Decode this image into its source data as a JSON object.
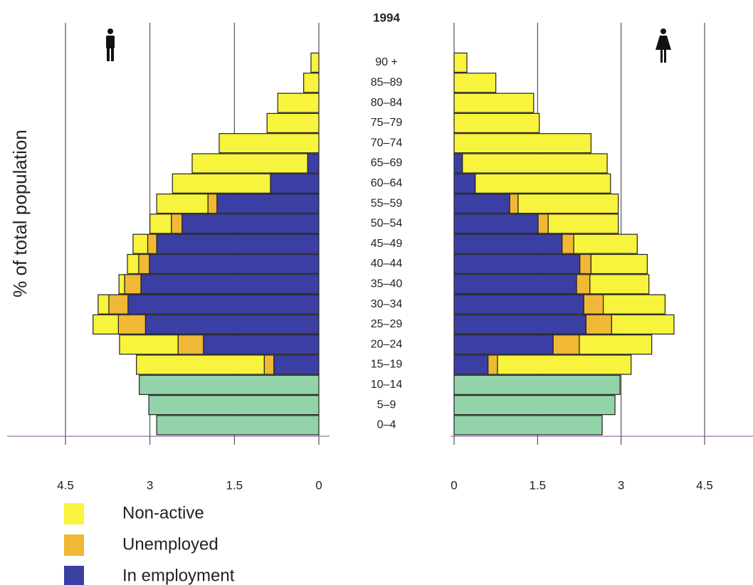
{
  "chart_data": {
    "type": "bar",
    "orientation": "horizontal",
    "title": "1994",
    "ylabel": "% of total population",
    "categories": [
      "90 +",
      "85–89",
      "80–84",
      "75–79",
      "70–74",
      "65–69",
      "60–64",
      "55–59",
      "50–54",
      "45–49",
      "40–44",
      "35–40",
      "30–34",
      "25–29",
      "20–24",
      "15–19",
      "10–14",
      "5–9",
      "0–4"
    ],
    "panels": [
      {
        "x_reversed": true,
        "xlim": [
          0,
          4.5
        ],
        "xticks": [
          4.5,
          3,
          1.5,
          0
        ],
        "series": [
          {
            "color": "#93d3a9",
            "values": [
              0,
              0,
              0,
              0,
              0,
              0,
              0,
              0,
              0,
              0,
              0,
              0,
              0,
              0,
              0,
              0,
              3.19,
              3.02,
              2.88
            ]
          },
          {
            "name": "In employment",
            "color": "#3b3fa3",
            "values": [
              0,
              0,
              0,
              0,
              0,
              0.2,
              0.86,
              1.81,
              2.43,
              2.88,
              3.01,
              3.16,
              3.39,
              3.08,
              2.05,
              0.8,
              0,
              0,
              0
            ]
          },
          {
            "name": "Unemployed",
            "color": "#f0b834",
            "values": [
              0,
              0,
              0,
              0,
              0,
              0,
              0,
              0.16,
              0.19,
              0.16,
              0.19,
              0.29,
              0.34,
              0.48,
              0.45,
              0.17,
              0,
              0,
              0
            ]
          },
          {
            "name": "Non-active",
            "color": "#f8f33c",
            "values": [
              0.14,
              0.27,
              0.73,
              0.92,
              1.77,
              2.05,
              1.74,
              0.91,
              0.38,
              0.26,
              0.2,
              0.1,
              0.19,
              0.45,
              1.04,
              2.27,
              0,
              0,
              0
            ]
          }
        ]
      },
      {
        "x_reversed": false,
        "xlim": [
          0,
          4.5
        ],
        "xticks": [
          0,
          1.5,
          3,
          4.5
        ],
        "series": [
          {
            "color": "#93d3a9",
            "values": [
              0,
              0,
              0,
              0,
              0,
              0,
              0,
              0,
              0,
              0,
              0,
              0,
              0,
              0,
              0,
              0,
              2.98,
              2.89,
              2.66
            ]
          },
          {
            "color": "#3b3fa3",
            "values": [
              0,
              0,
              0,
              0,
              0,
              0.15,
              0.38,
              1.0,
              1.51,
              1.94,
              2.26,
              2.2,
              2.33,
              2.37,
              1.78,
              0.61,
              0,
              0,
              0
            ]
          },
          {
            "color": "#f0b834",
            "values": [
              0,
              0,
              0,
              0,
              0,
              0,
              0,
              0.15,
              0.18,
              0.21,
              0.2,
              0.24,
              0.35,
              0.46,
              0.47,
              0.17,
              0,
              0,
              0
            ]
          },
          {
            "color": "#f8f33c",
            "values": [
              0.23,
              0.75,
              1.43,
              1.53,
              2.46,
              2.6,
              2.43,
              1.8,
              1.26,
              1.14,
              1.01,
              1.06,
              1.11,
              1.12,
              1.3,
              2.4,
              0,
              0,
              0
            ]
          }
        ]
      }
    ]
  }
}
